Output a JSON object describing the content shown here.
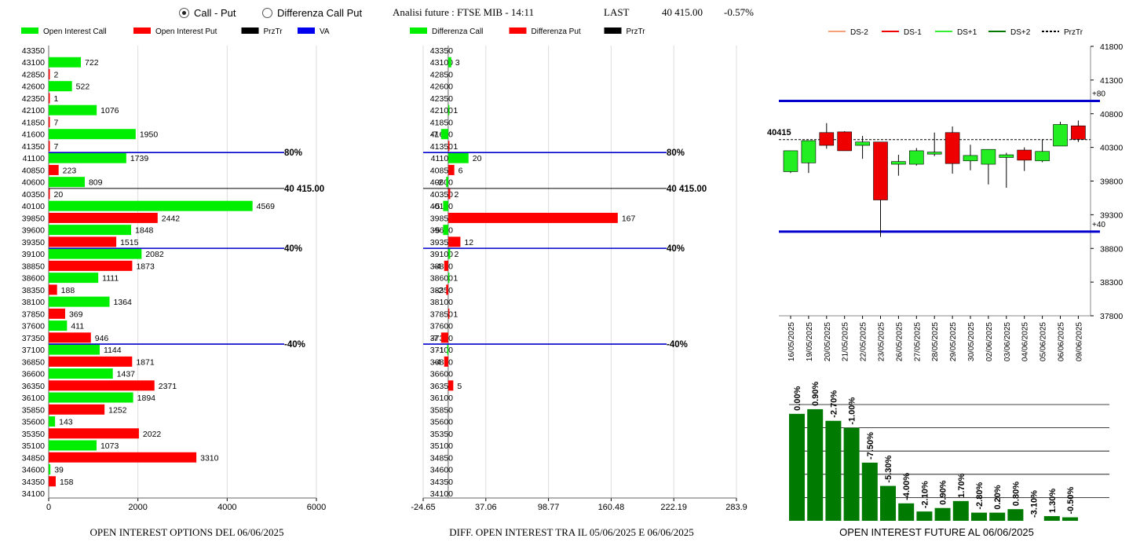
{
  "header": {
    "radio_call_put": "Call - Put",
    "radio_diff": "Differenza Call Put",
    "analysis": "Analisi future : FTSE MIB - 14:11",
    "last_label": "LAST",
    "last_value": "40 415.00",
    "last_change": "-0.57%"
  },
  "chart_data": [
    {
      "type": "bar",
      "title": "OPEN INTEREST OPTIONS DEL 06/06/2025",
      "legend": [
        {
          "label": "Open Interest Call",
          "color": "#00ee00"
        },
        {
          "label": "Open Interest Put",
          "color": "#ff0000"
        },
        {
          "label": "PrzTr",
          "color": "#000000"
        },
        {
          "label": "VA",
          "color": "#0000ee"
        }
      ],
      "categories": [
        "43350",
        "43100",
        "42850",
        "42600",
        "42350",
        "42100",
        "41850",
        "41600",
        "41350",
        "41100",
        "40850",
        "40600",
        "40350",
        "40100",
        "39850",
        "39600",
        "39350",
        "39100",
        "38850",
        "38600",
        "38350",
        "38100",
        "37850",
        "37600",
        "37350",
        "37100",
        "36850",
        "36600",
        "36350",
        "36100",
        "35850",
        "35600",
        "35350",
        "35100",
        "34850",
        "34600",
        "34350",
        "34100"
      ],
      "series": [
        {
          "name": "Open Interest Call",
          "color": "#00ee00",
          "values": [
            null,
            722,
            null,
            522,
            null,
            1076,
            null,
            1950,
            null,
            1739,
            null,
            809,
            null,
            4569,
            null,
            1848,
            null,
            2082,
            null,
            1111,
            null,
            1364,
            null,
            411,
            null,
            1144,
            null,
            1437,
            null,
            1894,
            null,
            143,
            null,
            1073,
            null,
            39,
            null,
            null
          ]
        },
        {
          "name": "Open Interest Put",
          "color": "#ff0000",
          "values": [
            null,
            null,
            2,
            null,
            1,
            null,
            7,
            null,
            7,
            null,
            223,
            null,
            20,
            null,
            2442,
            null,
            1515,
            null,
            1873,
            null,
            188,
            null,
            369,
            null,
            946,
            null,
            1871,
            null,
            2371,
            null,
            1252,
            null,
            2022,
            null,
            3310,
            null,
            158,
            null
          ]
        }
      ],
      "xticks": [
        "0",
        "2000",
        "4000",
        "6000"
      ],
      "xlim": [
        0,
        6000
      ],
      "ref_lines": [
        {
          "strike": "41100",
          "label": "80%",
          "color": "#0000cc"
        },
        {
          "strike": "40350",
          "label": "40 415.00",
          "color": "#000000"
        },
        {
          "strike": "39100",
          "label": "40%",
          "color": "#0000cc"
        },
        {
          "strike": "37100",
          "label": "-40%",
          "color": "#0000cc"
        }
      ]
    },
    {
      "type": "bar",
      "title": "DIFF. OPEN INTEREST TRA IL 05/06/2025 E 06/06/2025",
      "legend": [
        {
          "label": "Differenza Call",
          "color": "#00ee00"
        },
        {
          "label": "Differenza Put",
          "color": "#ff0000"
        },
        {
          "label": "PrzTr",
          "color": "#000000"
        }
      ],
      "categories": [
        "43350",
        "43100",
        "42850",
        "42600",
        "42350",
        "42100",
        "41850",
        "41600",
        "41350",
        "41100",
        "40850",
        "40600",
        "40350",
        "40100",
        "39850",
        "39600",
        "39350",
        "39100",
        "38850",
        "38600",
        "38350",
        "38100",
        "37850",
        "37600",
        "37350",
        "37100",
        "36850",
        "36600",
        "36350",
        "36100",
        "35850",
        "35600",
        "35350",
        "35100",
        "34850",
        "34600",
        "34350",
        "34100"
      ],
      "series": [
        {
          "name": "Differenza Call",
          "color": "#00ee00",
          "values": [
            null,
            3,
            null,
            null,
            null,
            1,
            null,
            -7,
            null,
            20,
            null,
            -2,
            null,
            -5,
            null,
            -5,
            null,
            2,
            null,
            1,
            null,
            null,
            null,
            null,
            null,
            -1,
            null,
            null,
            null,
            null,
            null,
            null,
            null,
            null,
            null,
            null,
            null,
            null
          ]
        },
        {
          "name": "Differenza Put",
          "color": "#ff0000",
          "values": [
            null,
            null,
            null,
            null,
            null,
            null,
            null,
            null,
            1,
            null,
            6,
            null,
            2,
            null,
            167,
            null,
            12,
            null,
            -4,
            null,
            -2,
            null,
            1,
            null,
            -7,
            null,
            -4,
            null,
            5,
            null,
            null,
            null,
            null,
            null,
            null,
            null,
            null,
            null
          ]
        }
      ],
      "xticks": [
        "-24.65",
        "37.06",
        "98.77",
        "160.48",
        "222.19",
        "283.9"
      ],
      "xlim": [
        -24.65,
        283.9
      ],
      "ref_lines": [
        {
          "strike": "41100",
          "label": "80%",
          "color": "#0000cc"
        },
        {
          "strike": "40350",
          "label": "40 415.00",
          "color": "#000000"
        },
        {
          "strike": "39100",
          "label": "40%",
          "color": "#0000cc"
        },
        {
          "strike": "37100",
          "label": "-40%",
          "color": "#0000cc"
        }
      ]
    },
    {
      "type": "candlestick",
      "legend": [
        {
          "label": "DS-2",
          "color": "#f4a07a",
          "dash": false
        },
        {
          "label": "DS-1",
          "color": "#ee0000",
          "dash": false
        },
        {
          "label": "DS+1",
          "color": "#33ee33",
          "dash": false
        },
        {
          "label": "DS+2",
          "color": "#007700",
          "dash": false
        },
        {
          "label": "PrzTr",
          "color": "#000000",
          "dash": true
        }
      ],
      "categories": [
        "16/05/2025",
        "19/05/2025",
        "20/05/2025",
        "21/05/2025",
        "22/05/2025",
        "23/05/2025",
        "26/05/2025",
        "27/05/2025",
        "28/05/2025",
        "29/05/2025",
        "30/05/2025",
        "02/06/2025",
        "03/06/2025",
        "04/06/2025",
        "05/06/2025",
        "06/06/2025",
        "09/06/2025"
      ],
      "ohlc": [
        [
          39940,
          40250,
          39920,
          40250
        ],
        [
          40070,
          40400,
          39920,
          40400
        ],
        [
          40520,
          40660,
          40280,
          40330
        ],
        [
          40530,
          40540,
          40250,
          40250
        ],
        [
          40330,
          40470,
          40130,
          40380
        ],
        [
          40380,
          40380,
          38970,
          39520
        ],
        [
          40050,
          40190,
          39880,
          40090
        ],
        [
          40050,
          40290,
          40030,
          40250
        ],
        [
          40200,
          40520,
          40170,
          40230
        ],
        [
          40520,
          40610,
          39910,
          40060
        ],
        [
          40100,
          40340,
          39960,
          40180
        ],
        [
          40050,
          40270,
          39750,
          40270
        ],
        [
          40150,
          40220,
          39700,
          40190
        ],
        [
          40260,
          40300,
          39950,
          40110
        ],
        [
          40100,
          40420,
          40080,
          40240
        ],
        [
          40320,
          40680,
          40320,
          40640
        ],
        [
          40620,
          40700,
          40380,
          40420
        ]
      ],
      "prztr": 40415,
      "prztr_label": "40415",
      "ylim": [
        37800,
        41800
      ],
      "yticks": [
        "41800",
        "41300",
        "40800",
        "40300",
        "39800",
        "39300",
        "38800",
        "38300",
        "37800"
      ],
      "hlines": [
        {
          "value": 40990,
          "label": "+80",
          "color": "#0000cc"
        },
        {
          "value": 39050,
          "label": "+40",
          "color": "#0000cc"
        }
      ]
    },
    {
      "type": "bar",
      "title": "OPEN INTEREST FUTURE AL 06/06/2025",
      "values": [
        92,
        96,
        86,
        80,
        50,
        30,
        15,
        8,
        11,
        17,
        7,
        7,
        10,
        0,
        4,
        3
      ],
      "labels": [
        "0.00%",
        "0.90%",
        "-2.70%",
        "-1.00%",
        "-7.50%",
        "-5.30%",
        "-4.00%",
        "-2.10%",
        "0.90%",
        "1.70%",
        "-2.80%",
        "0.20%",
        "0.80%",
        "-3.10%",
        "1.30%",
        "-0.50%"
      ],
      "ylim": [
        0,
        100
      ],
      "color": "#007a00",
      "grid": true
    }
  ]
}
